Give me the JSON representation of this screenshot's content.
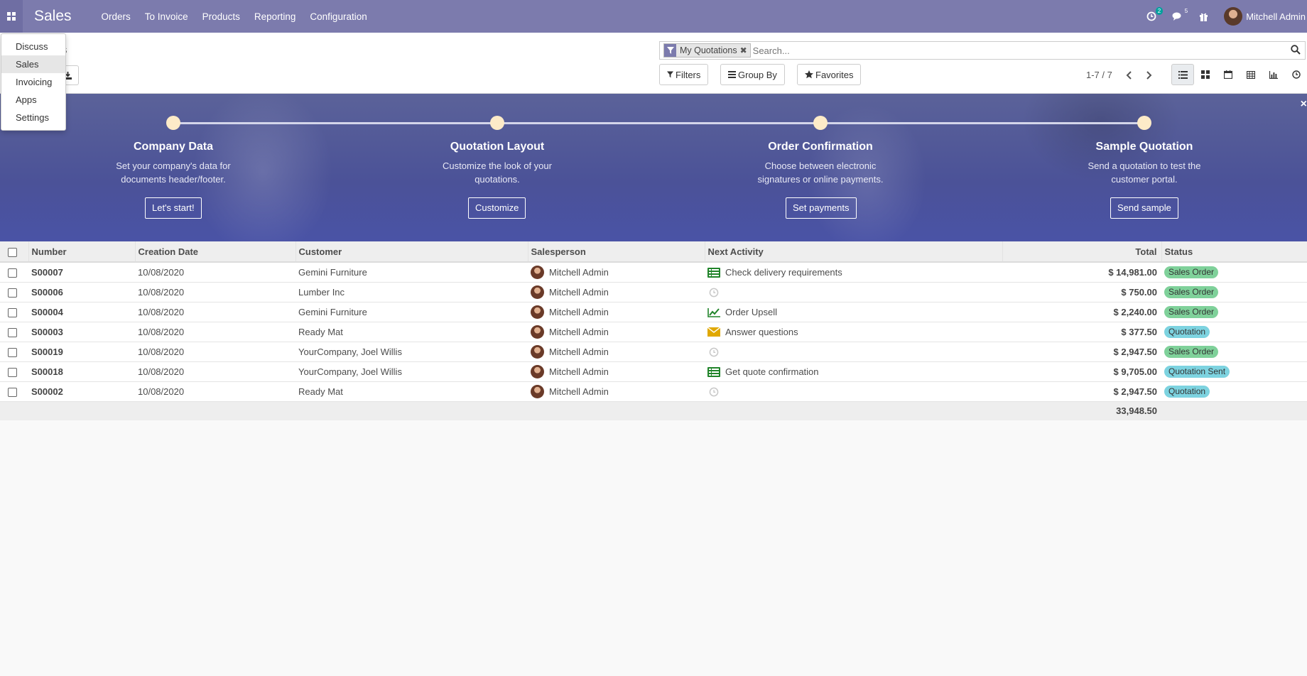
{
  "navbar": {
    "brand": "Sales",
    "menu": [
      "Orders",
      "To Invoice",
      "Products",
      "Reporting",
      "Configuration"
    ],
    "activity_count": "2",
    "message_count": "5",
    "user_name": "Mitchell Admin"
  },
  "apps_menu": [
    "Discuss",
    "Sales",
    "Invoicing",
    "Apps",
    "Settings"
  ],
  "control_panel": {
    "breadcrumb_visible": "s",
    "search_facet": "My Quotations",
    "search_placeholder": "Search...",
    "filters_label": "Filters",
    "groupby_label": "Group By",
    "favorites_label": "Favorites",
    "pager": "1-7 / 7"
  },
  "onboarding": {
    "steps": [
      {
        "title": "Company Data",
        "description": "Set your company's data for documents header/footer.",
        "button": "Let's start!"
      },
      {
        "title": "Quotation Layout",
        "description": "Customize the look of your quotations.",
        "button": "Customize"
      },
      {
        "title": "Order Confirmation",
        "description": "Choose between electronic signatures or online payments.",
        "button": "Set payments"
      },
      {
        "title": "Sample Quotation",
        "description": "Send a quotation to test the customer portal.",
        "button": "Send sample"
      }
    ],
    "close": "×"
  },
  "table": {
    "headers": [
      "Number",
      "Creation Date",
      "Customer",
      "Salesperson",
      "Next Activity",
      "Total",
      "Status"
    ],
    "rows": [
      {
        "number": "S00007",
        "date": "10/08/2020",
        "customer": "Gemini Furniture",
        "salesperson": "Mitchell Admin",
        "activity": "Check delivery requirements",
        "activity_icon": "todo-list-icon",
        "total": "$ 14,981.00",
        "status": "Sales Order"
      },
      {
        "number": "S00006",
        "date": "10/08/2020",
        "customer": "Lumber Inc",
        "salesperson": "Mitchell Admin",
        "activity": "",
        "activity_icon": "clock-icon",
        "total": "$ 750.00",
        "status": "Sales Order"
      },
      {
        "number": "S00004",
        "date": "10/08/2020",
        "customer": "Gemini Furniture",
        "salesperson": "Mitchell Admin",
        "activity": "Order Upsell",
        "activity_icon": "trend-up-icon",
        "total": "$ 2,240.00",
        "status": "Sales Order"
      },
      {
        "number": "S00003",
        "date": "10/08/2020",
        "customer": "Ready Mat",
        "salesperson": "Mitchell Admin",
        "activity": "Answer questions",
        "activity_icon": "envelope-icon",
        "total": "$ 377.50",
        "status": "Quotation"
      },
      {
        "number": "S00019",
        "date": "10/08/2020",
        "customer": "YourCompany, Joel Willis",
        "salesperson": "Mitchell Admin",
        "activity": "",
        "activity_icon": "clock-icon",
        "total": "$ 2,947.50",
        "status": "Sales Order"
      },
      {
        "number": "S00018",
        "date": "10/08/2020",
        "customer": "YourCompany, Joel Willis",
        "salesperson": "Mitchell Admin",
        "activity": "Get quote confirmation",
        "activity_icon": "todo-list-icon",
        "total": "$ 9,705.00",
        "status": "Quotation Sent"
      },
      {
        "number": "S00002",
        "date": "10/08/2020",
        "customer": "Ready Mat",
        "salesperson": "Mitchell Admin",
        "activity": "",
        "activity_icon": "clock-icon",
        "total": "$ 2,947.50",
        "status": "Quotation"
      }
    ],
    "grand_total": "33,948.50"
  },
  "colors": {
    "navbar": "#7c7bad",
    "status_sales_order": "#7fd19a",
    "status_quotation": "#7dd3e0",
    "activity_green": "#21842a",
    "activity_orange": "#e0a800"
  }
}
